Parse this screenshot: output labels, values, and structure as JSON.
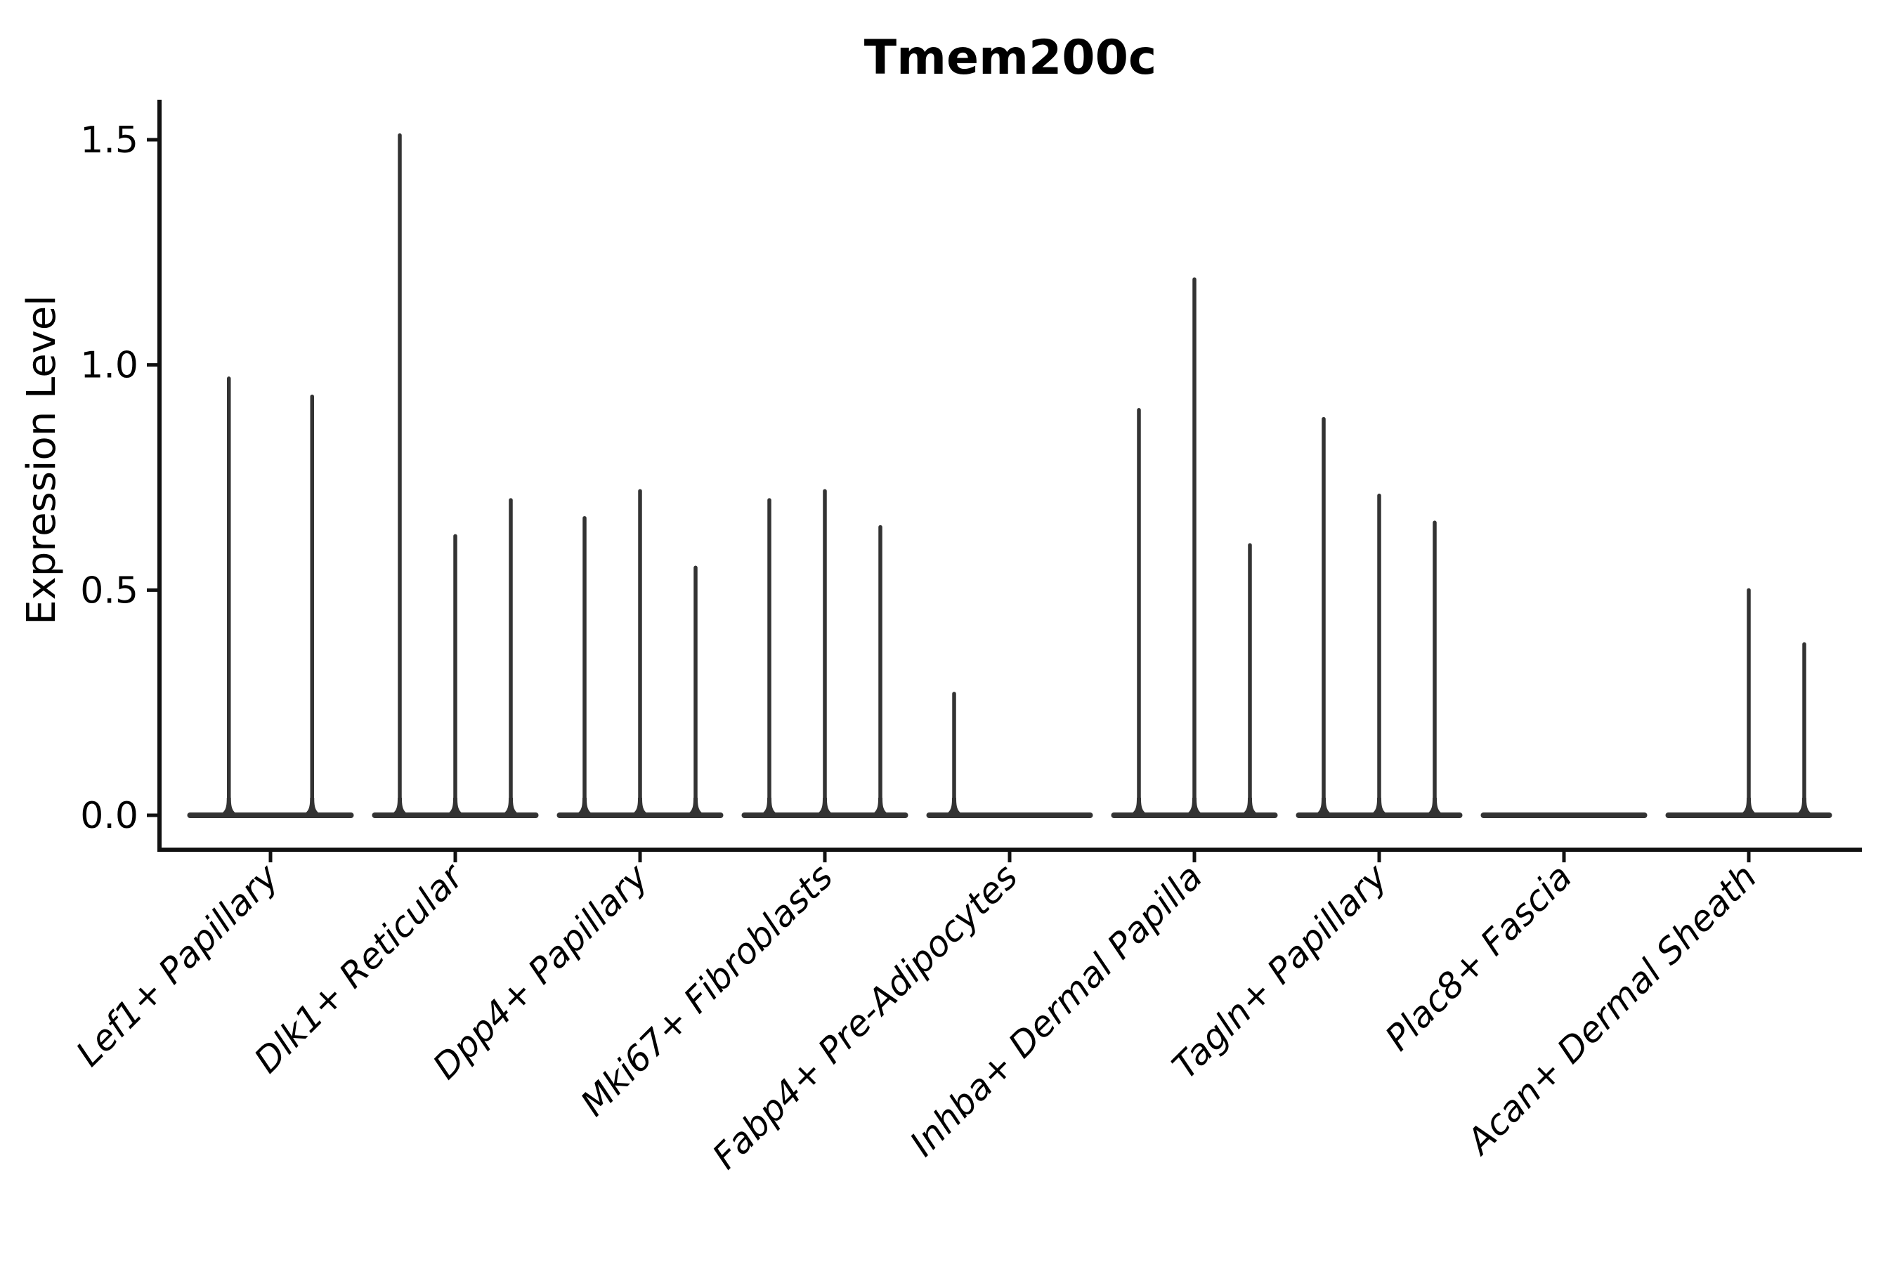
{
  "chart_data": {
    "type": "violin",
    "title": "Tmem200c",
    "ylabel": "Expression Level",
    "xlabel": "",
    "grid": false,
    "legend": "none",
    "orientation": "vertical",
    "axis_range_y": [
      -0.08,
      1.59
    ],
    "ytick_values": [
      0.0,
      0.5,
      1.0,
      1.5
    ],
    "ytick_labels": [
      "0.0",
      "0.5",
      "1.0",
      "1.5"
    ],
    "categories": [
      "Lef1+ Papillary",
      "Dlk1+ Reticular",
      "Dpp4+ Papillary",
      "Mki67+ Fibroblasts",
      "Fabp4+ Pre-Adipocytes",
      "Inhba+ Dermal Papilla",
      "Tagln+ Papillary",
      "Plac8+ Fascia",
      "Acan+ Dermal Sheath"
    ],
    "groups": [
      {
        "category": "Lef1+ Papillary",
        "violin_peaks": [
          0.97,
          0.93
        ]
      },
      {
        "category": "Dlk1+ Reticular",
        "violin_peaks": [
          1.51,
          0.62,
          0.7
        ]
      },
      {
        "category": "Dpp4+ Papillary",
        "violin_peaks": [
          0.66,
          0.72,
          0.55
        ]
      },
      {
        "category": "Mki67+ Fibroblasts",
        "violin_peaks": [
          0.7,
          0.72,
          0.64
        ]
      },
      {
        "category": "Fabp4+ Pre-Adipocytes",
        "violin_peaks": [
          0.27,
          0.0,
          0.0
        ]
      },
      {
        "category": "Inhba+ Dermal Papilla",
        "violin_peaks": [
          0.9,
          1.19,
          0.6
        ]
      },
      {
        "category": "Tagln+ Papillary",
        "violin_peaks": [
          0.88,
          0.71,
          0.65
        ]
      },
      {
        "category": "Plac8+ Fascia",
        "violin_peaks": [
          0.0,
          0.0,
          0.0
        ]
      },
      {
        "category": "Acan+ Dermal Sheath",
        "violin_peaks": [
          0.0,
          0.5,
          0.38
        ]
      }
    ],
    "violin_description": "each category shows 2-3 extremely narrow violins: a flat wide base at expression 0 with a thin spike rising to the peak value",
    "colors": {
      "violin": "#333333",
      "axis": "#111111",
      "text": "#000000",
      "background": "#ffffff"
    }
  }
}
